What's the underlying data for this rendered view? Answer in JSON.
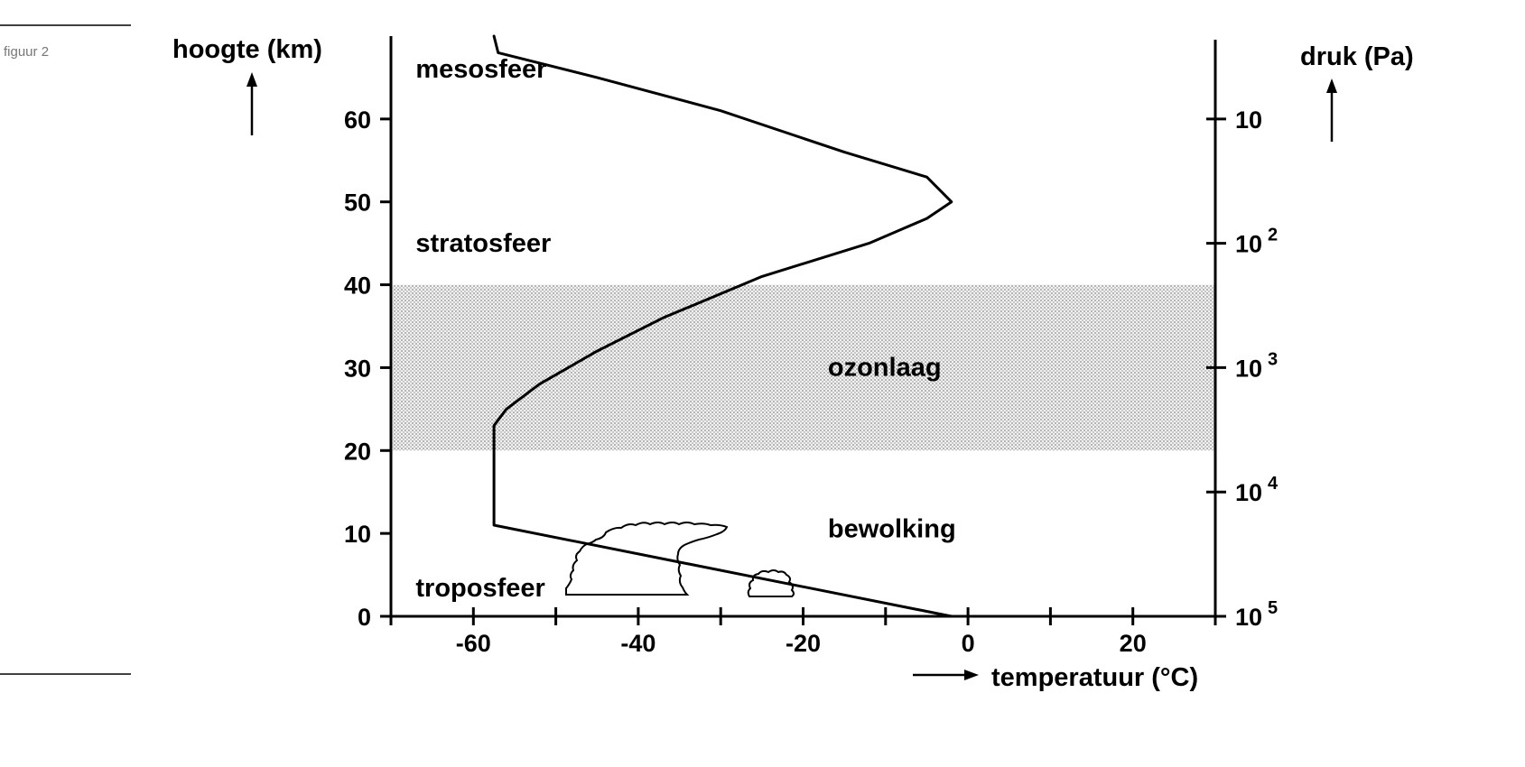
{
  "figure_label": "figuur 2",
  "chart_data": {
    "type": "line",
    "xlabel": "temperatuur (°C)",
    "ylabel": "hoogte (km)",
    "y2label": "druk (Pa)",
    "xlim": [
      -70,
      30
    ],
    "ylim": [
      0,
      70
    ],
    "xticks": [
      -70,
      -60,
      -50,
      -40,
      -30,
      -20,
      -10,
      0,
      10,
      20,
      30
    ],
    "xtick_labels": [
      {
        "value": -60,
        "label": "-60"
      },
      {
        "value": -40,
        "label": "-40"
      },
      {
        "value": -20,
        "label": "-20"
      },
      {
        "value": 0,
        "label": "0"
      },
      {
        "value": 20,
        "label": "20"
      }
    ],
    "yticks": [
      0,
      10,
      20,
      30,
      40,
      50,
      60
    ],
    "ytick_labels": [
      "0",
      "10",
      "20",
      "30",
      "40",
      "50",
      "60"
    ],
    "y2ticks": [
      {
        "height": 0,
        "base": "10",
        "exp": "5"
      },
      {
        "height": 15,
        "base": "10",
        "exp": "4"
      },
      {
        "height": 30,
        "base": "10",
        "exp": "3"
      },
      {
        "height": 45,
        "base": "10",
        "exp": "2"
      },
      {
        "height": 60,
        "base": "10",
        "exp": ""
      }
    ],
    "series": [
      {
        "points": [
          [
            -2,
            0
          ],
          [
            -57.5,
            11
          ],
          [
            -57.5,
            23
          ],
          [
            -56,
            25
          ],
          [
            -52,
            28
          ],
          [
            -45,
            32
          ],
          [
            -37,
            36
          ],
          [
            -25,
            41
          ],
          [
            -12,
            45
          ],
          [
            -5,
            48
          ],
          [
            -2,
            50
          ],
          [
            -5,
            53
          ],
          [
            -15,
            56
          ],
          [
            -30,
            61
          ],
          [
            -45,
            65
          ],
          [
            -57,
            68
          ],
          [
            -57.5,
            70
          ]
        ]
      }
    ],
    "bands": [
      {
        "name": "ozonlaag",
        "y": [
          20,
          40
        ]
      }
    ],
    "annotations": [
      {
        "text": "mesosfeer",
        "x": -67,
        "y": 65
      },
      {
        "text": "stratosfeer",
        "x": -67,
        "y": 44
      },
      {
        "text": "ozonlaag",
        "x": -17,
        "y": 29
      },
      {
        "text": "bewolking",
        "x": -17,
        "y": 9.5
      },
      {
        "text": "troposfeer",
        "x": -67,
        "y": 2.4
      }
    ],
    "clouds": [
      {
        "name": "cumulonimbus",
        "x": [
          -49,
          -34
        ],
        "y": [
          3,
          10.5
        ]
      },
      {
        "name": "cumulus",
        "x": [
          -26,
          -21
        ],
        "y": [
          2.5,
          5
        ]
      }
    ],
    "grid": false
  }
}
